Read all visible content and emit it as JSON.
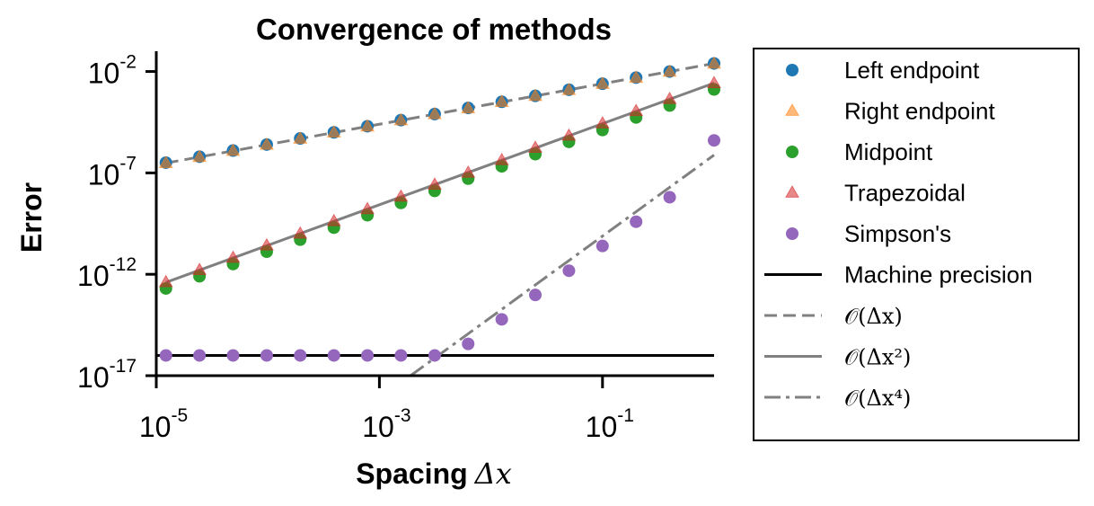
{
  "chart_data": {
    "type": "scatter",
    "title": "Convergence of methods",
    "xlabel": "Spacing",
    "xlabel_math": "Δx",
    "ylabel": "Error",
    "xscale": "log",
    "yscale": "log",
    "xlim": [
      1e-05,
      1.0
    ],
    "ylim": [
      1e-17,
      0.1
    ],
    "x_ticks": [
      {
        "base": "10",
        "exp": "-5",
        "value": 1e-05
      },
      {
        "base": "10",
        "exp": "-3",
        "value": 0.001
      },
      {
        "base": "10",
        "exp": "-1",
        "value": 0.1
      }
    ],
    "y_ticks": [
      {
        "base": "10",
        "exp": "-2",
        "value": 0.01
      },
      {
        "base": "10",
        "exp": "-7",
        "value": 1e-07
      },
      {
        "base": "10",
        "exp": "-12",
        "value": 1e-12
      },
      {
        "base": "10",
        "exp": "-17",
        "value": 1e-17
      }
    ],
    "grid": false,
    "legend_position": "outside-right",
    "x": [
      1.22e-05,
      2.44e-05,
      4.88e-05,
      9.77e-05,
      0.000195,
      0.000391,
      0.000781,
      0.00156,
      0.00313,
      0.00625,
      0.0125,
      0.025,
      0.05,
      0.1,
      0.2,
      0.4,
      1.0
    ],
    "series": [
      {
        "name": "Left endpoint",
        "marker": "circle",
        "color": "#1f77b4",
        "values": [
          3.2e-07,
          6.3e-07,
          1.26e-06,
          2.5e-06,
          5e-06,
          1e-05,
          2e-05,
          4e-05,
          8e-05,
          0.00016,
          0.00032,
          0.00063,
          0.00126,
          0.0025,
          0.005,
          0.01,
          0.025
        ]
      },
      {
        "name": "Right endpoint",
        "marker": "triangle",
        "color": "#ff7f0e",
        "values": [
          3e-07,
          6e-07,
          1.2e-06,
          2.4e-06,
          4.8e-06,
          9.6e-06,
          1.9e-05,
          3.8e-05,
          7.7e-05,
          0.00015,
          0.00031,
          0.00061,
          0.0012,
          0.0024,
          0.0048,
          0.0096,
          0.024
        ]
      },
      {
        "name": "Midpoint",
        "marker": "circle",
        "color": "#2ca02c",
        "values": [
          2e-13,
          8e-13,
          3.2e-12,
          1.3e-11,
          5.1e-11,
          2e-10,
          8.2e-10,
          3.3e-09,
          1.3e-08,
          5.2e-08,
          2.1e-07,
          8.4e-07,
          3.4e-06,
          1.3e-05,
          5.4e-05,
          0.00021,
          0.0013
        ]
      },
      {
        "name": "Trapezoidal",
        "marker": "triangle",
        "color": "#d62728",
        "values": [
          4e-13,
          1.6e-12,
          6.4e-12,
          2.6e-11,
          1e-10,
          4.1e-10,
          1.6e-09,
          6.6e-09,
          2.6e-08,
          1e-07,
          4.2e-07,
          1.7e-06,
          6.7e-06,
          2.7e-05,
          0.00011,
          0.00043,
          0.0026
        ]
      },
      {
        "name": "Simpson's",
        "marker": "circle",
        "color": "#9467bd",
        "values": [
          1e-16,
          1e-16,
          1e-16,
          1e-16,
          1e-16,
          1e-16,
          1e-16,
          1e-16,
          1e-16,
          3.7e-16,
          6e-15,
          9.6e-14,
          1.5e-12,
          2.5e-11,
          3.9e-10,
          6.3e-09,
          4e-06
        ]
      }
    ],
    "reference_lines": [
      {
        "name": "Machine precision",
        "style": "solid",
        "color": "#000000",
        "points": [
          [
            1e-05,
            1e-16
          ],
          [
            1.0,
            1e-16
          ]
        ]
      },
      {
        "name": "𝒪(Δx)",
        "style": "dashed",
        "color": "#808080",
        "points": [
          [
            1.22e-05,
            3.05e-07
          ],
          [
            1.0,
            0.025
          ]
        ]
      },
      {
        "name": "𝒪(Δx²)",
        "style": "solid",
        "color": "#808080",
        "points": [
          [
            1.22e-05,
            4e-13
          ],
          [
            1.0,
            0.00268
          ]
        ]
      },
      {
        "name": "𝒪(Δx⁴)",
        "style": "dashdot",
        "color": "#808080",
        "points": [
          [
            0.0019,
            1e-17
          ],
          [
            1.0,
            7.6e-07
          ]
        ]
      }
    ],
    "legend": {
      "entries": [
        {
          "label": "Left endpoint",
          "kind": "circle",
          "color": "#1f77b4"
        },
        {
          "label": "Right endpoint",
          "kind": "triangle",
          "color": "#ff7f0e"
        },
        {
          "label": "Midpoint",
          "kind": "circle",
          "color": "#2ca02c"
        },
        {
          "label": "Trapezoidal",
          "kind": "triangle",
          "color": "#d62728"
        },
        {
          "label": "Simpson's",
          "kind": "circle",
          "color": "#9467bd"
        },
        {
          "label": "Machine precision",
          "kind": "solid",
          "color": "#000000"
        },
        {
          "label": "𝒪(Δx)",
          "kind": "dashed",
          "color": "#808080"
        },
        {
          "label": "𝒪(Δx²)",
          "kind": "solid",
          "color": "#808080"
        },
        {
          "label": "𝒪(Δx⁴)",
          "kind": "dashdot",
          "color": "#808080"
        }
      ]
    }
  }
}
